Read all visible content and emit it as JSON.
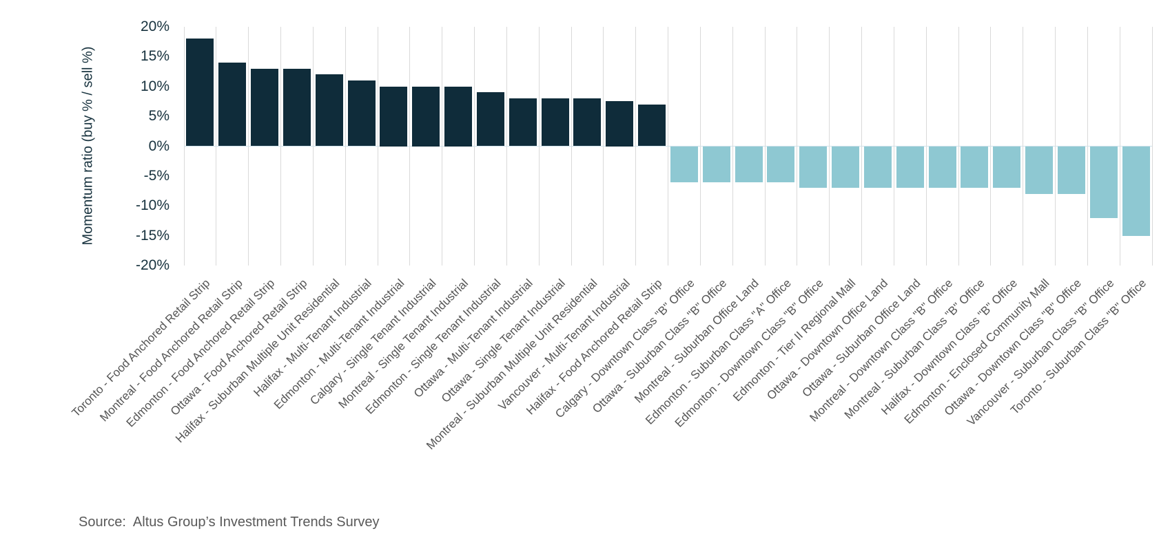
{
  "chart_data": {
    "type": "bar",
    "title": "",
    "ylabel": "Momentum ratio (buy % / sell %)",
    "xlabel": "",
    "ylim": [
      -20,
      20
    ],
    "yticks": [
      20,
      15,
      10,
      5,
      0,
      -5,
      -10,
      -15,
      -20
    ],
    "ytick_suffix": "%",
    "grid": "vertical-category-separators",
    "legend_position": "none",
    "categories": [
      "Toronto - Food Anchored Retail Strip",
      "Montreal - Food Anchored Retail Strip",
      "Edmonton - Food Anchored Retail Strip",
      "Ottawa - Food Anchored Retail Strip",
      "Halifax - Suburban Multiple Unit Residential",
      "Halifax - Multi-Tenant Industrial",
      "Edmonton - Multi-Tenant Industrial",
      "Calgary - Single Tenant Industrial",
      "Montreal - Single Tenant Industrial",
      "Edmonton - Single Tenant Industrial",
      "Ottawa - Multi-Tenant Industrial",
      "Ottawa - Single Tenant Industrial",
      "Montreal - Suburban Multiple Unit Residential",
      "Vancouver - Multi-Tenant Industrial",
      "Halifax - Food Anchored Retail Strip",
      "Calgary - Downtown Class \"B\" Office",
      "Ottawa - Suburban Class \"B\" Office",
      "Montreal - Suburban Office Land",
      "Edmonton - Suburban Class \"A\" Office",
      "Edmonton - Downtown Class \"B\" Office",
      "Edmonton - Tier II Regional Mall",
      "Ottawa - Downtown Office Land",
      "Ottawa - Suburban Office Land",
      "Montreal - Downtown Class \"B\" Office",
      "Montreal - Suburban Class \"B\" Office",
      "Halifax - Downtown Class \"B\" Office",
      "Edmonton - Enclosed Community Mall",
      "Ottawa - Downtown Class \"B\" Office",
      "Vancouver - Suburban Class \"B\" Office",
      "Toronto - Suburban Class \"B\" Office"
    ],
    "values": [
      18,
      14,
      13,
      13,
      12,
      11,
      10,
      10,
      10,
      9,
      8,
      8,
      8,
      7.5,
      7,
      -6,
      -6,
      -6,
      -6,
      -7,
      -7,
      -7,
      -7,
      -7,
      -7,
      -7,
      -8,
      -8,
      -12,
      -15
    ],
    "colors": {
      "positive_bar": "#0f2c3a",
      "negative_bar": "#8ec8d2",
      "gridline": "#d9d9d9",
      "zero_line": "#cfe2ea",
      "axis_text": "#17323e",
      "category_text": "#555555"
    }
  },
  "source_note": "Source:  Altus Group’s Investment Trends Survey"
}
